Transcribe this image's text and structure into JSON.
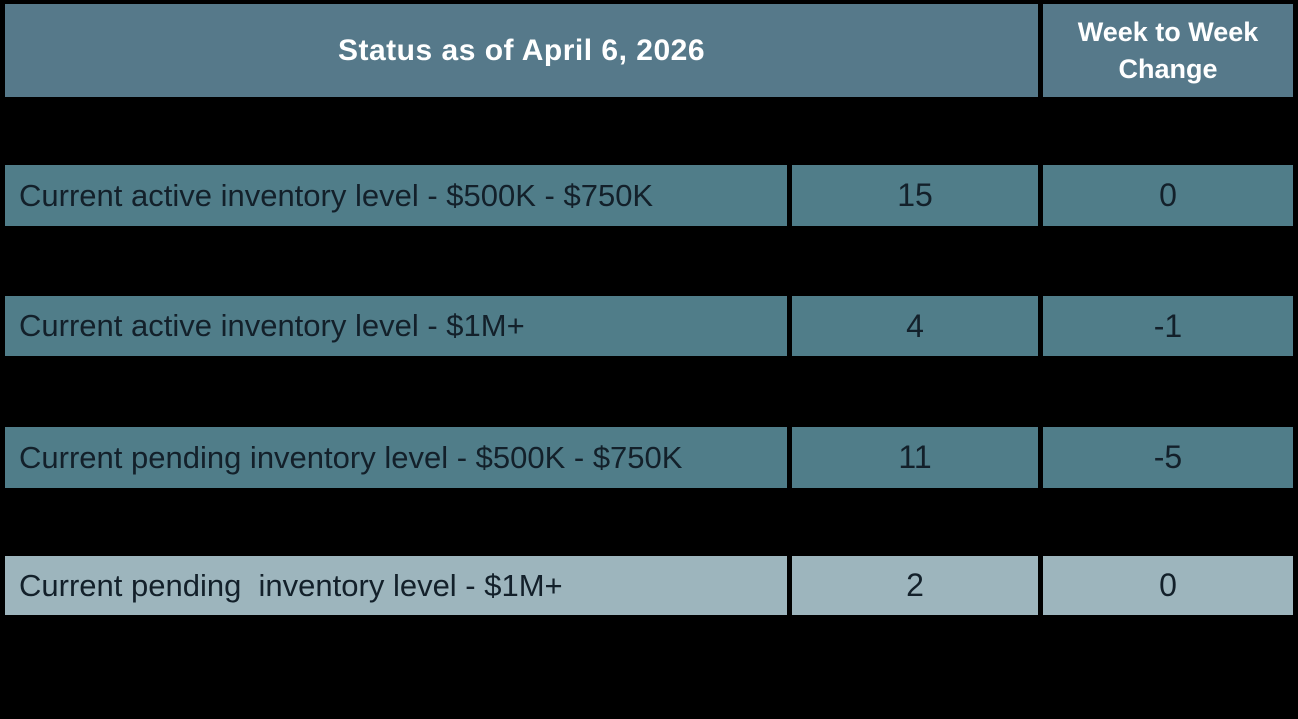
{
  "table": {
    "header": {
      "title": "Status as of April 6, 2026",
      "change_column_label": "Week to Week Change"
    },
    "rows": [
      {
        "label": "Current active inventory level - $500K - $750K",
        "value": "15",
        "change": "0"
      },
      {
        "label": "Current active inventory level - $1M+",
        "value": "4",
        "change": "-1"
      },
      {
        "label": "Current pending inventory level - $500K - $750K",
        "value": "11",
        "change": "-5"
      },
      {
        "label": "Current pending  inventory level - $1M+",
        "value": "2",
        "change": "0"
      }
    ],
    "colors": {
      "header_bg": "#56798a",
      "row_bg": "#507d89",
      "highlight_row_bg": "#9db5bd",
      "gap_bg": "#000000",
      "header_text": "#ffffff",
      "row_text": "#13202a"
    }
  }
}
